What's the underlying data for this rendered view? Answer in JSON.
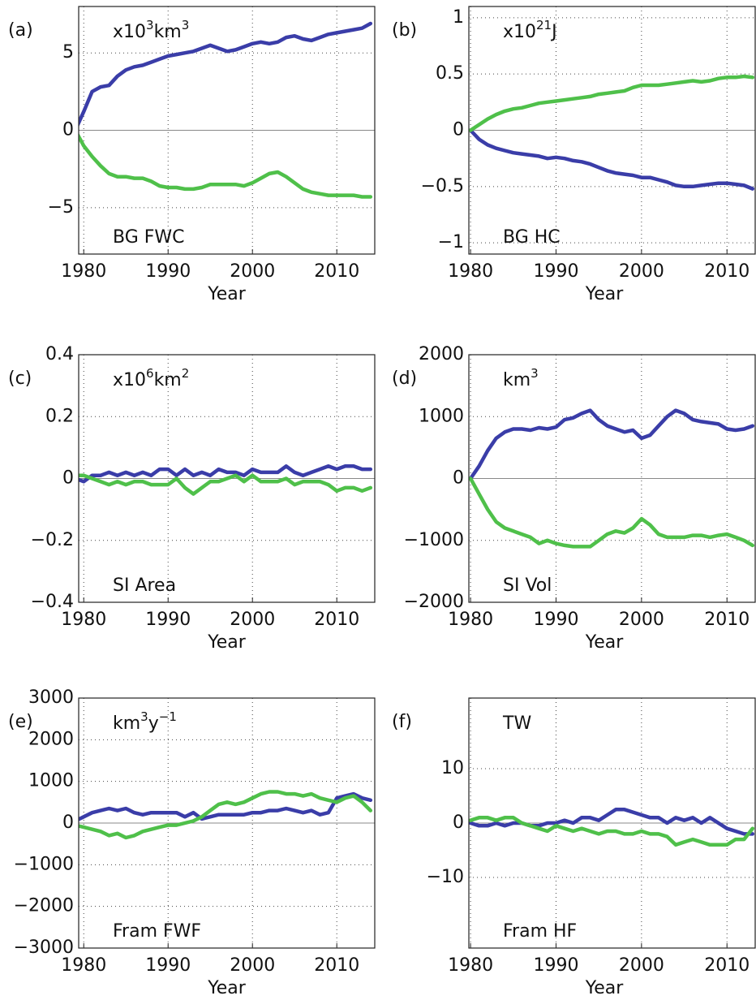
{
  "chart_data": [
    {
      "type": "line",
      "panel": "(a)",
      "unit": [
        {
          "text": "x10"
        },
        {
          "text": "3",
          "sup": true
        },
        {
          "text": "km"
        },
        {
          "text": "3",
          "sup": true
        }
      ],
      "label": "BG FWC",
      "xlabel": "Year",
      "xlim": [
        1979.4,
        2014.5
      ],
      "xticks": [
        1980,
        1990,
        2000,
        2010
      ],
      "ylim": [
        -8,
        8
      ],
      "yticks": [
        {
          "value": -5,
          "label": "−5"
        },
        0,
        5
      ],
      "grid": true,
      "x": [
        1979,
        1980,
        1981,
        1982,
        1983,
        1984,
        1985,
        1986,
        1987,
        1988,
        1989,
        1990,
        1991,
        1992,
        1993,
        1994,
        1995,
        1996,
        1997,
        1998,
        1999,
        2000,
        2001,
        2002,
        2003,
        2004,
        2005,
        2006,
        2007,
        2008,
        2009,
        2010,
        2011,
        2012,
        2013,
        2014
      ],
      "series": [
        {
          "color": "#3a3da8",
          "values": [
            0,
            1.2,
            2.5,
            2.8,
            2.9,
            3.5,
            3.9,
            4.1,
            4.2,
            4.4,
            4.6,
            4.8,
            4.9,
            5.0,
            5.1,
            5.3,
            5.5,
            5.3,
            5.1,
            5.2,
            5.4,
            5.6,
            5.7,
            5.6,
            5.7,
            6.0,
            6.1,
            5.9,
            5.8,
            6.0,
            6.2,
            6.3,
            6.4,
            6.5,
            6.6,
            6.9
          ]
        },
        {
          "color": "#4fc04a",
          "values": [
            0,
            -1.0,
            -1.7,
            -2.3,
            -2.8,
            -3.0,
            -3.0,
            -3.1,
            -3.1,
            -3.3,
            -3.6,
            -3.7,
            -3.7,
            -3.8,
            -3.8,
            -3.7,
            -3.5,
            -3.5,
            -3.5,
            -3.5,
            -3.6,
            -3.4,
            -3.1,
            -2.8,
            -2.7,
            -3.0,
            -3.4,
            -3.8,
            -4.0,
            -4.1,
            -4.2,
            -4.2,
            -4.2,
            -4.2,
            -4.3,
            -4.3
          ]
        }
      ]
    },
    {
      "type": "line",
      "panel": "(b)",
      "unit": [
        {
          "text": "x10"
        },
        {
          "text": "21",
          "sup": true
        },
        {
          "text": "J"
        }
      ],
      "label": "BG HC",
      "xlabel": "Year",
      "xlim": [
        1979.8,
        2013.3
      ],
      "xticks": [
        1980,
        1990,
        2000,
        2010
      ],
      "ylim": [
        -1.1,
        1.1
      ],
      "yticks": [
        {
          "value": -1,
          "label": "−1"
        },
        {
          "value": -0.5,
          "label": "−0.5"
        },
        0,
        0.5,
        1
      ],
      "grid": true,
      "x": [
        1980,
        1981,
        1982,
        1983,
        1984,
        1985,
        1986,
        1987,
        1988,
        1989,
        1990,
        1991,
        1992,
        1993,
        1994,
        1995,
        1996,
        1997,
        1998,
        1999,
        2000,
        2001,
        2002,
        2003,
        2004,
        2005,
        2006,
        2007,
        2008,
        2009,
        2010,
        2011,
        2012,
        2013
      ],
      "series": [
        {
          "color": "#3a3da8",
          "values": [
            0,
            -0.08,
            -0.13,
            -0.16,
            -0.18,
            -0.2,
            -0.21,
            -0.22,
            -0.23,
            -0.25,
            -0.24,
            -0.25,
            -0.27,
            -0.28,
            -0.3,
            -0.33,
            -0.36,
            -0.38,
            -0.39,
            -0.4,
            -0.42,
            -0.42,
            -0.44,
            -0.46,
            -0.49,
            -0.5,
            -0.5,
            -0.49,
            -0.48,
            -0.47,
            -0.47,
            -0.48,
            -0.49,
            -0.52
          ]
        },
        {
          "color": "#4fc04a",
          "values": [
            0,
            0.05,
            0.1,
            0.14,
            0.17,
            0.19,
            0.2,
            0.22,
            0.24,
            0.25,
            0.26,
            0.27,
            0.28,
            0.29,
            0.3,
            0.32,
            0.33,
            0.34,
            0.35,
            0.38,
            0.4,
            0.4,
            0.4,
            0.41,
            0.42,
            0.43,
            0.44,
            0.43,
            0.44,
            0.46,
            0.47,
            0.47,
            0.48,
            0.47
          ]
        }
      ]
    },
    {
      "type": "line",
      "panel": "(c)",
      "unit": [
        {
          "text": "x10"
        },
        {
          "text": "6",
          "sup": true
        },
        {
          "text": "km"
        },
        {
          "text": "2",
          "sup": true
        }
      ],
      "label": "SI Area",
      "xlabel": "Year",
      "xlim": [
        1979.4,
        2014.5
      ],
      "xticks": [
        1980,
        1990,
        2000,
        2010
      ],
      "ylim": [
        -0.4,
        0.4
      ],
      "yticks": [
        {
          "value": -0.4,
          "label": "−0.4"
        },
        {
          "value": -0.2,
          "label": "−0.2"
        },
        0,
        0.2,
        0.4
      ],
      "grid": true,
      "x": [
        1979,
        1980,
        1981,
        1982,
        1983,
        1984,
        1985,
        1986,
        1987,
        1988,
        1989,
        1990,
        1991,
        1992,
        1993,
        1994,
        1995,
        1996,
        1997,
        1998,
        1999,
        2000,
        2001,
        2002,
        2003,
        2004,
        2005,
        2006,
        2007,
        2008,
        2009,
        2010,
        2011,
        2012,
        2013,
        2014
      ],
      "series": [
        {
          "color": "#3a3da8",
          "values": [
            0,
            -0.01,
            0.01,
            0.01,
            0.02,
            0.01,
            0.02,
            0.01,
            0.02,
            0.01,
            0.03,
            0.03,
            0.01,
            0.03,
            0.01,
            0.02,
            0.01,
            0.03,
            0.02,
            0.02,
            0.01,
            0.03,
            0.02,
            0.02,
            0.02,
            0.04,
            0.02,
            0.01,
            0.02,
            0.03,
            0.04,
            0.03,
            0.04,
            0.04,
            0.03,
            0.03
          ]
        },
        {
          "color": "#4fc04a",
          "values": [
            0.01,
            0.01,
            0,
            -0.01,
            -0.02,
            -0.01,
            -0.02,
            -0.01,
            -0.01,
            -0.02,
            -0.02,
            -0.02,
            0,
            -0.03,
            -0.05,
            -0.03,
            -0.01,
            -0.01,
            0,
            0.01,
            -0.01,
            0.01,
            -0.01,
            -0.01,
            -0.01,
            0,
            -0.02,
            -0.01,
            -0.01,
            -0.01,
            -0.02,
            -0.04,
            -0.03,
            -0.03,
            -0.04,
            -0.03
          ]
        }
      ]
    },
    {
      "type": "line",
      "panel": "(d)",
      "unit": [
        {
          "text": "km"
        },
        {
          "text": "3",
          "sup": true
        }
      ],
      "label": "SI Vol",
      "xlabel": "Year",
      "xlim": [
        1979.8,
        2013.3
      ],
      "xticks": [
        1980,
        1990,
        2000,
        2010
      ],
      "ylim": [
        -2000,
        2000
      ],
      "yticks": [
        {
          "value": -2000,
          "label": "−2000"
        },
        {
          "value": -1000,
          "label": "−1000"
        },
        0,
        1000,
        2000
      ],
      "grid": true,
      "x": [
        1980,
        1981,
        1982,
        1983,
        1984,
        1985,
        1986,
        1987,
        1988,
        1989,
        1990,
        1991,
        1992,
        1993,
        1994,
        1995,
        1996,
        1997,
        1998,
        1999,
        2000,
        2001,
        2002,
        2003,
        2004,
        2005,
        2006,
        2007,
        2008,
        2009,
        2010,
        2011,
        2012,
        2013
      ],
      "series": [
        {
          "color": "#3a3da8",
          "values": [
            0,
            200,
            450,
            650,
            750,
            800,
            800,
            780,
            820,
            800,
            830,
            950,
            980,
            1050,
            1100,
            950,
            850,
            800,
            750,
            780,
            650,
            700,
            850,
            1000,
            1100,
            1050,
            950,
            920,
            900,
            880,
            800,
            780,
            800,
            850
          ]
        },
        {
          "color": "#4fc04a",
          "values": [
            0,
            -250,
            -500,
            -700,
            -800,
            -850,
            -900,
            -950,
            -1050,
            -1000,
            -1050,
            -1080,
            -1100,
            -1100,
            -1100,
            -1000,
            -900,
            -850,
            -880,
            -800,
            -650,
            -750,
            -900,
            -950,
            -950,
            -950,
            -920,
            -920,
            -950,
            -920,
            -900,
            -950,
            -1000,
            -1080
          ]
        }
      ]
    },
    {
      "type": "line",
      "panel": "(e)",
      "unit": [
        {
          "text": "km"
        },
        {
          "text": "3",
          "sup": true
        },
        {
          "text": "y"
        },
        {
          "text": "−1",
          "sup": true
        }
      ],
      "label": "Fram FWF",
      "xlabel": "Year",
      "xlim": [
        1979.4,
        2014.5
      ],
      "xticks": [
        1980,
        1990,
        2000,
        2010
      ],
      "ylim": [
        -3000,
        3000
      ],
      "yticks": [
        {
          "value": -3000,
          "label": "−3000"
        },
        {
          "value": -2000,
          "label": "−2000"
        },
        {
          "value": -1000,
          "label": "−1000"
        },
        0,
        1000,
        2000,
        3000
      ],
      "grid": true,
      "x": [
        1979,
        1980,
        1981,
        1982,
        1983,
        1984,
        1985,
        1986,
        1987,
        1988,
        1989,
        1990,
        1991,
        1992,
        1993,
        1994,
        1995,
        1996,
        1997,
        1998,
        1999,
        2000,
        2001,
        2002,
        2003,
        2004,
        2005,
        2006,
        2007,
        2008,
        2009,
        2010,
        2011,
        2012,
        2013,
        2014
      ],
      "series": [
        {
          "color": "#3a3da8",
          "values": [
            50,
            150,
            250,
            300,
            350,
            300,
            350,
            250,
            200,
            250,
            250,
            250,
            250,
            150,
            250,
            100,
            150,
            200,
            200,
            200,
            200,
            250,
            250,
            300,
            300,
            350,
            300,
            250,
            300,
            200,
            250,
            600,
            650,
            700,
            600,
            550
          ]
        },
        {
          "color": "#4fc04a",
          "values": [
            -50,
            -100,
            -150,
            -200,
            -300,
            -250,
            -350,
            -300,
            -200,
            -150,
            -100,
            -50,
            -50,
            0,
            50,
            150,
            300,
            450,
            500,
            450,
            500,
            600,
            700,
            750,
            750,
            700,
            700,
            650,
            700,
            600,
            550,
            500,
            600,
            650,
            500,
            300
          ]
        }
      ]
    },
    {
      "type": "line",
      "panel": "(f)",
      "unit": [
        {
          "text": "TW"
        }
      ],
      "label": "Fram HF",
      "xlabel": "Year",
      "xlim": [
        1979.8,
        2013.3
      ],
      "xticks": [
        1980,
        1990,
        2000,
        2010
      ],
      "ylim": [
        -23,
        23
      ],
      "yticks": [
        {
          "value": -10,
          "label": "−10"
        },
        0,
        10
      ],
      "grid": true,
      "x": [
        1980,
        1981,
        1982,
        1983,
        1984,
        1985,
        1986,
        1987,
        1988,
        1989,
        1990,
        1991,
        1992,
        1993,
        1994,
        1995,
        1996,
        1997,
        1998,
        1999,
        2000,
        2001,
        2002,
        2003,
        2004,
        2005,
        2006,
        2007,
        2008,
        2009,
        2010,
        2011,
        2012,
        2013
      ],
      "series": [
        {
          "color": "#3a3da8",
          "values": [
            0,
            -0.5,
            -0.5,
            0,
            -0.5,
            0,
            0,
            -0.5,
            -0.5,
            0,
            0,
            0.5,
            0,
            1,
            1,
            0.5,
            1.5,
            2.5,
            2.5,
            2,
            1.5,
            1,
            1,
            0,
            1,
            0.5,
            1,
            0,
            1,
            0,
            -1,
            -1.5,
            -2,
            -2
          ]
        },
        {
          "color": "#4fc04a",
          "values": [
            0.5,
            1,
            1,
            0.5,
            1,
            1,
            0,
            -0.5,
            -1,
            -1.5,
            -0.5,
            -1,
            -1.5,
            -1,
            -1.5,
            -2,
            -1.5,
            -1.5,
            -2,
            -2,
            -1.5,
            -2,
            -2,
            -2.5,
            -4,
            -3.5,
            -3,
            -3.5,
            -4,
            -4,
            -4,
            -3,
            -3,
            -1
          ]
        }
      ]
    }
  ]
}
